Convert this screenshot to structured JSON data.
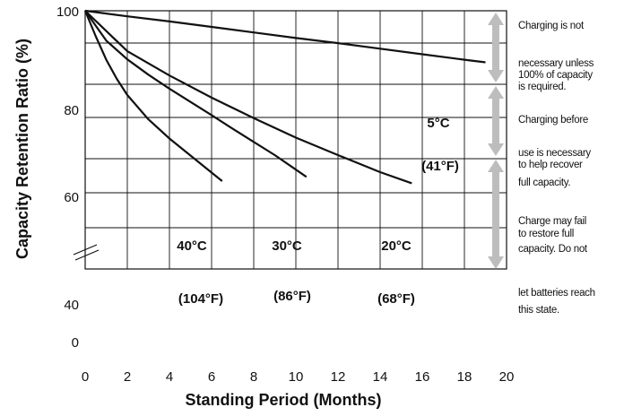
{
  "chart_data": {
    "type": "line",
    "xlabel": "Standing Period (Months)",
    "ylabel": "Capacity Retention Ratio (%)",
    "x_ticks": [
      "0",
      "2",
      "4",
      "6",
      "8",
      "10",
      "12",
      "14",
      "16",
      "18",
      "20"
    ],
    "y_ticks": [
      "100",
      "80",
      "60",
      "40",
      "0"
    ],
    "xlim": [
      0,
      20
    ],
    "grid": true,
    "axis_break": true,
    "series": [
      {
        "name": "5°C",
        "unit_label": "(41°F)",
        "x": [
          0,
          2,
          4,
          6,
          8,
          10,
          12,
          14,
          16,
          18,
          19
        ],
        "y": [
          100,
          98.7,
          97.5,
          96.2,
          94.9,
          93.6,
          92.4,
          91.1,
          89.8,
          88.5,
          87.9
        ]
      },
      {
        "name": "20°C",
        "unit_label": "(68°F)",
        "x": [
          0,
          2,
          4,
          6,
          8,
          10,
          12,
          14,
          15.5
        ],
        "y": [
          100,
          90.5,
          84.8,
          79.6,
          74.8,
          70.2,
          66.1,
          62.1,
          59.5
        ]
      },
      {
        "name": "30°C",
        "unit_label": "(86°F)",
        "x": [
          0,
          1,
          2,
          3,
          4,
          5,
          6,
          7,
          8,
          9,
          10,
          10.5
        ],
        "y": [
          100,
          93,
          88.6,
          85,
          81.7,
          78.6,
          75.5,
          72.3,
          69.2,
          66.1,
          62.7,
          61
        ]
      },
      {
        "name": "40°C",
        "unit_label": "(104°F)",
        "x": [
          0,
          0.5,
          1,
          1.5,
          2,
          3,
          4,
          5,
          6,
          6.5
        ],
        "y": [
          100,
          94,
          88.5,
          84,
          80.2,
          74.5,
          70,
          66,
          62,
          60
        ]
      }
    ],
    "annotations": [
      {
        "lines": [
          "Charging is not",
          "necessary unless",
          "100% of capacity",
          "is required."
        ]
      },
      {
        "lines": [
          "Charging before",
          "use is necessary",
          "to help recover",
          "full capacity."
        ]
      },
      {
        "lines": [
          "Charge may fail",
          "to restore full",
          "capacity. Do not",
          "let batteries reach",
          "this state."
        ]
      }
    ]
  }
}
